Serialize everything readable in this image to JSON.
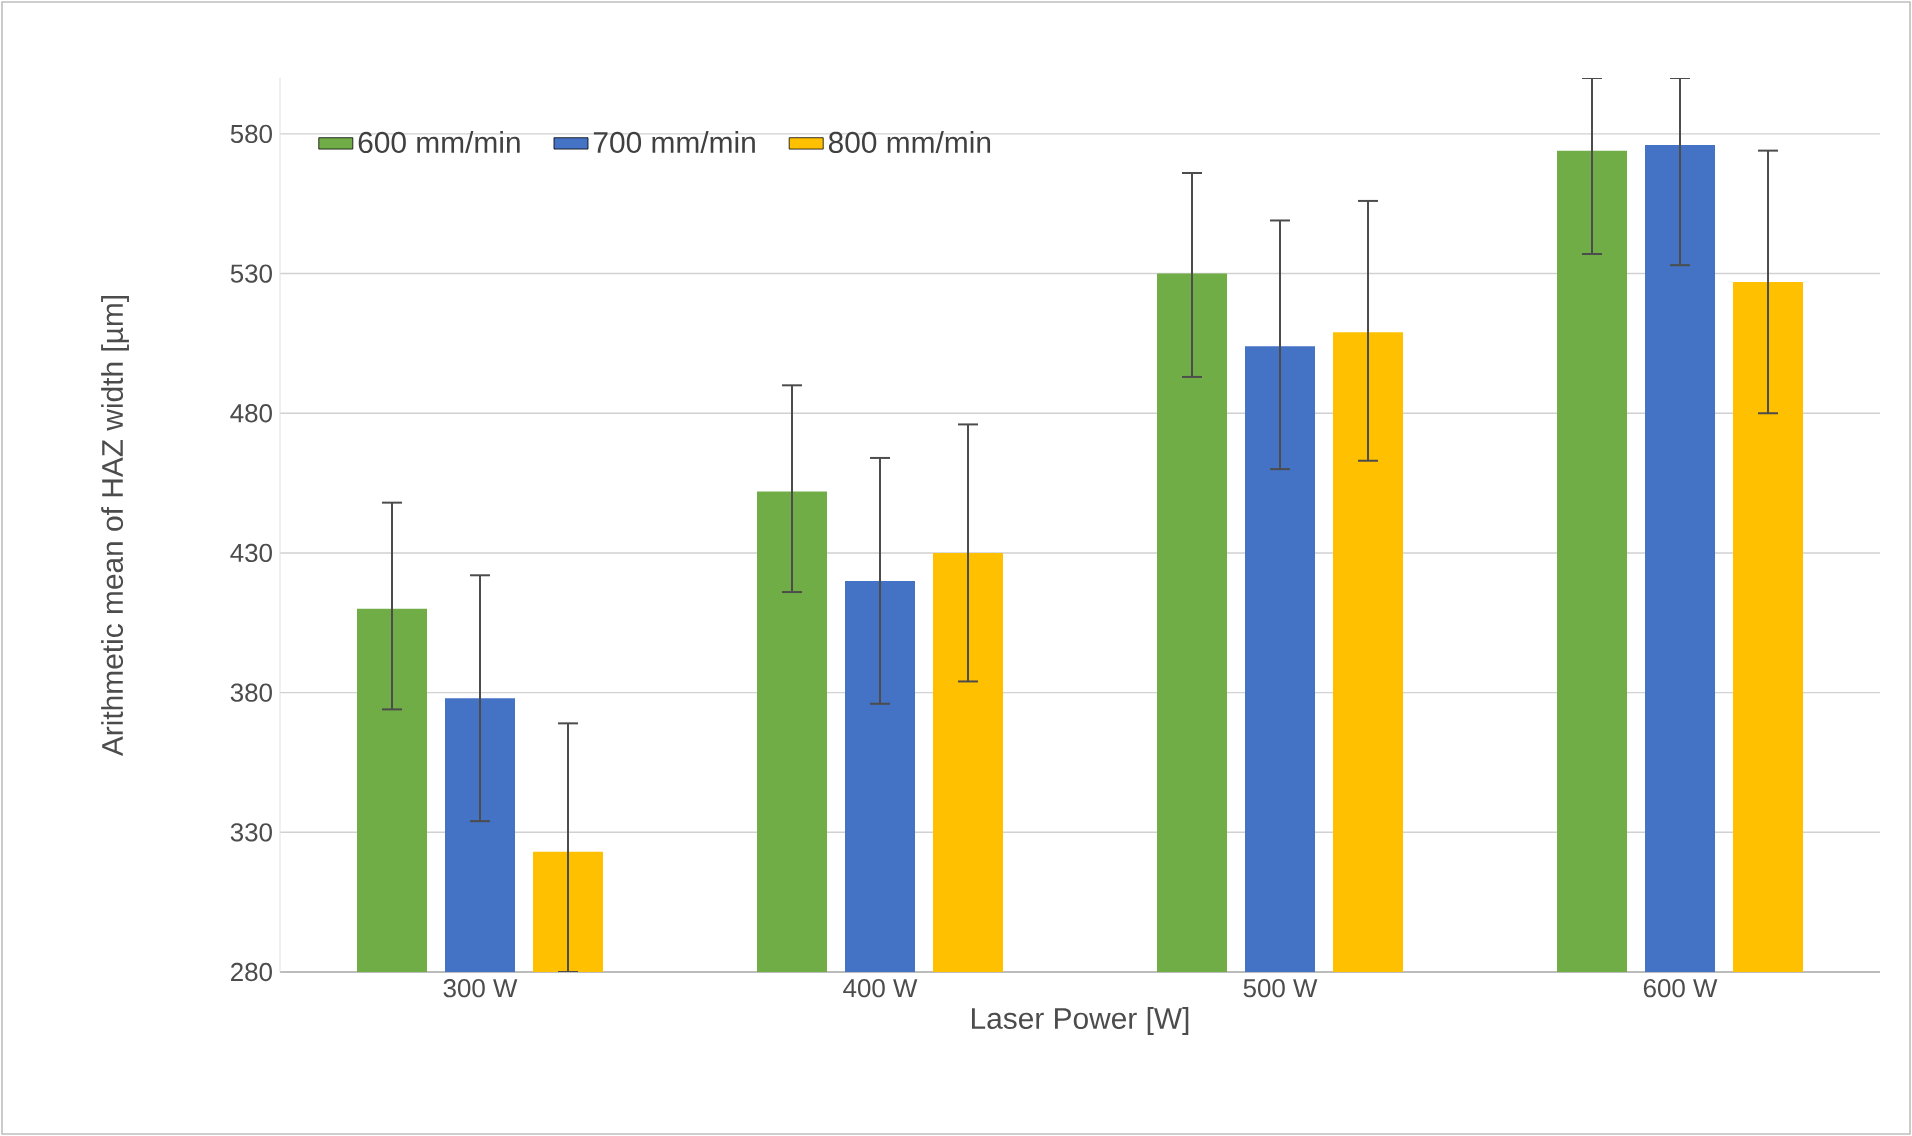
{
  "chart_data": {
    "type": "bar",
    "xlabel": "Laser Power [W]",
    "ylabel": "Arithmetic mean of HAZ width [µm]",
    "categories": [
      "300 W",
      "400 W",
      "500 W",
      "600 W"
    ],
    "series": [
      {
        "name": "600 mm/min",
        "color": "#70ad47",
        "values": [
          410,
          452,
          530,
          574
        ],
        "errors": [
          [
            374,
            448
          ],
          [
            416,
            490
          ],
          [
            493,
            566
          ],
          [
            537,
            600
          ]
        ]
      },
      {
        "name": "700 mm/min",
        "color": "#4472c4",
        "values": [
          378,
          420,
          504,
          576
        ],
        "errors": [
          [
            334,
            422
          ],
          [
            376,
            464
          ],
          [
            460,
            549
          ],
          [
            533,
            600
          ]
        ]
      },
      {
        "name": "800 mm/min",
        "color": "#ffc000",
        "values": [
          323,
          430,
          509,
          527
        ],
        "errors": [
          [
            280,
            369
          ],
          [
            384,
            476
          ],
          [
            463,
            556
          ],
          [
            480,
            574
          ]
        ]
      }
    ],
    "ylim": [
      280,
      600
    ],
    "yticks": [
      280,
      330,
      380,
      430,
      480,
      530,
      580
    ],
    "grid": "y",
    "legend": "top left"
  }
}
